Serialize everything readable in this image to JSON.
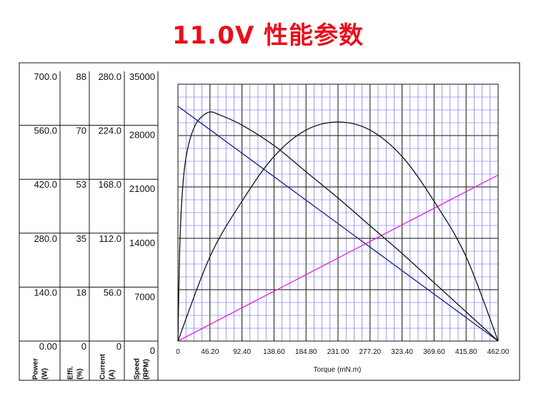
{
  "title": "11.0V 性能参数",
  "chart_data": {
    "type": "line",
    "xlabel": "Torque (mN.m)",
    "xlim": [
      0,
      462
    ],
    "x_ticks": [
      "0",
      "46.20",
      "92.40",
      "138.60",
      "184.80",
      "231.00",
      "277.20",
      "323.40",
      "369.60",
      "415.80",
      "462.00"
    ],
    "axes": [
      {
        "name": "Power",
        "unit": "(W)",
        "ticks": [
          "700.0",
          "560.0",
          "420.0",
          "280.0",
          "140.0",
          "0.00"
        ],
        "ylim": [
          0,
          700
        ]
      },
      {
        "name": "Effi.",
        "unit": "(%)",
        "ticks": [
          "88",
          "70",
          "53",
          "35",
          "18",
          "0"
        ],
        "ylim": [
          0,
          88
        ]
      },
      {
        "name": "Current",
        "unit": "(A)",
        "ticks": [
          "280.0",
          "224.0",
          "168.0",
          "112.0",
          "56.0",
          "0"
        ],
        "ylim": [
          0,
          280
        ]
      },
      {
        "name": "Speed",
        "unit": "(RPM)",
        "ticks": [
          "35000",
          "28000",
          "21000",
          "14000",
          "7000",
          "0"
        ],
        "ylim": [
          0,
          35000
        ]
      }
    ],
    "grid": true,
    "series": [
      {
        "axis": "Speed",
        "color": "#1a1a8c",
        "x": [
          0,
          462
        ],
        "y": [
          32000,
          0
        ]
      },
      {
        "axis": "Current",
        "color": "#e020e0",
        "x": [
          0,
          462
        ],
        "y": [
          0,
          181
        ]
      },
      {
        "axis": "Power",
        "color": "#111111",
        "x": [
          0,
          46.2,
          92.4,
          138.6,
          184.8,
          231,
          277.2,
          323.4,
          369.6,
          415.8,
          462
        ],
        "y": [
          0,
          230,
          381,
          503,
          575,
          597,
          575,
          503,
          381,
          230,
          0
        ]
      },
      {
        "axis": "Effi.",
        "color": "#111111",
        "x": [
          0,
          3,
          8,
          15,
          25,
          35,
          46.2,
          60,
          92.4,
          138.6,
          184.8,
          231,
          277.2,
          323.4,
          369.6,
          415.8,
          462
        ],
        "y": [
          0,
          35,
          56,
          67,
          74,
          77,
          78.5,
          77.5,
          74,
          67,
          58,
          49,
          39.5,
          30,
          20,
          10,
          0
        ]
      }
    ]
  }
}
